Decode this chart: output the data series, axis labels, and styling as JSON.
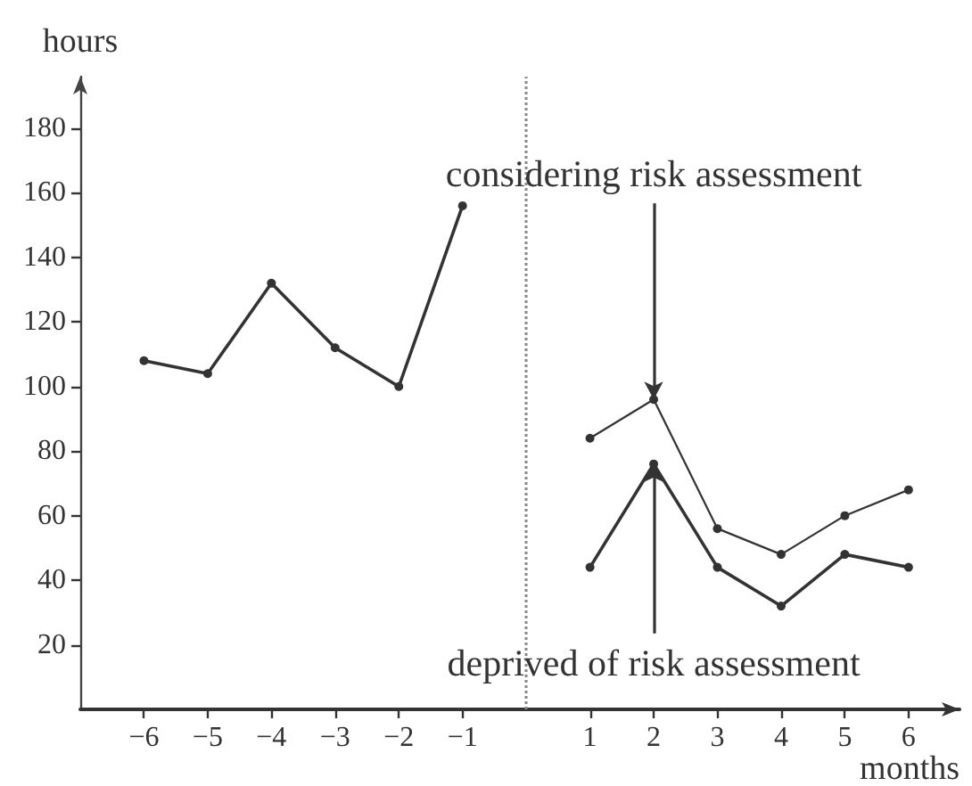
{
  "chart_data": {
    "type": "line",
    "xlabel": "months",
    "ylabel": "hours",
    "xlim": [
      -7,
      6.8
    ],
    "xticks": [
      -6,
      -5,
      -4,
      -3,
      -2,
      -1,
      1,
      2,
      3,
      4,
      5,
      6
    ],
    "ylim": [
      0,
      196
    ],
    "yticks": [
      20,
      40,
      60,
      80,
      100,
      120,
      140,
      160,
      180
    ],
    "series": [
      {
        "color": "#333333",
        "x": [
          -6,
          -5,
          -4,
          -3,
          -2,
          -1
        ],
        "values": [
          108,
          104,
          132,
          112,
          100,
          156
        ]
      },
      {
        "color": "#333333",
        "x": [
          1,
          2,
          3,
          4,
          5,
          6
        ],
        "values": [
          84,
          96,
          56,
          48,
          60,
          68
        ]
      },
      {
        "color": "#333333",
        "x": [
          1,
          2,
          3,
          4,
          5,
          6
        ],
        "values": [
          44,
          76,
          44,
          32,
          48,
          44
        ]
      }
    ],
    "ref_lines": [
      {
        "axis": "x",
        "value": 0,
        "color": "#888888",
        "line_style": "dotted"
      }
    ],
    "annotations": [
      {
        "text": "considering risk assessment",
        "x": 2,
        "y": 96
      },
      {
        "text": "deprived of risk assessment",
        "x": 2,
        "y": 76
      }
    ],
    "marker": "circle",
    "line_style": "solid",
    "grid": false
  }
}
